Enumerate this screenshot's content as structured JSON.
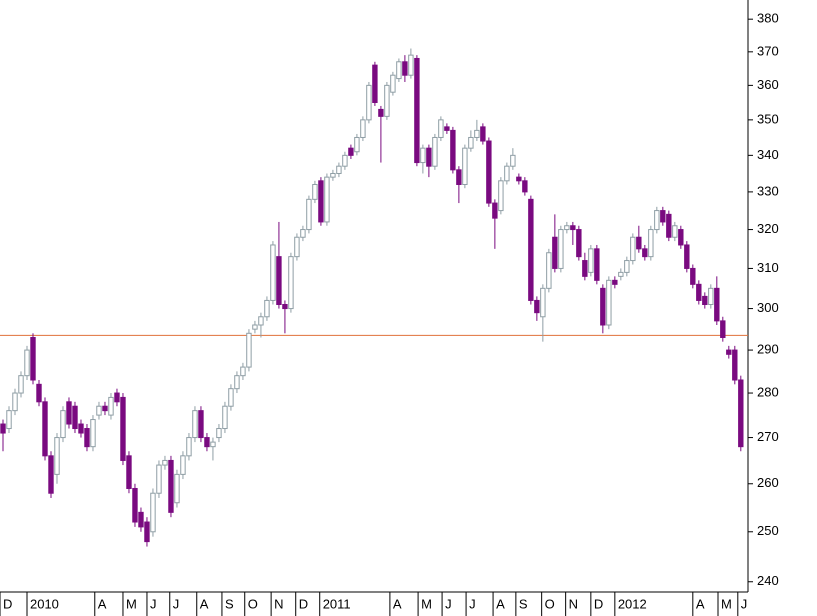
{
  "chart_data": {
    "type": "candlestick",
    "scale": "log",
    "ylim": [
      238,
      386
    ],
    "yticks": [
      240,
      250,
      260,
      270,
      280,
      290,
      300,
      310,
      320,
      330,
      340,
      350,
      360,
      370,
      380
    ],
    "xlim": [
      -0.5,
      124.2
    ],
    "xticks": [
      {
        "value": -0.5,
        "label": "D"
      },
      {
        "value": 4,
        "label": "2010"
      },
      {
        "value": 15.3,
        "label": "A"
      },
      {
        "value": 20,
        "label": "M"
      },
      {
        "value": 24,
        "label": "J"
      },
      {
        "value": 27.8,
        "label": "J"
      },
      {
        "value": 32.3,
        "label": "A"
      },
      {
        "value": 36.5,
        "label": "S"
      },
      {
        "value": 40.3,
        "label": "O"
      },
      {
        "value": 44.7,
        "label": "N"
      },
      {
        "value": 48.8,
        "label": "D"
      },
      {
        "value": 52.8,
        "label": "2011"
      },
      {
        "value": 64.5,
        "label": "A"
      },
      {
        "value": 69.2,
        "label": "M"
      },
      {
        "value": 73.2,
        "label": "J"
      },
      {
        "value": 77.2,
        "label": "J"
      },
      {
        "value": 81.7,
        "label": "A"
      },
      {
        "value": 85.5,
        "label": "S"
      },
      {
        "value": 89.8,
        "label": "O"
      },
      {
        "value": 93.8,
        "label": "N"
      },
      {
        "value": 98,
        "label": "D"
      },
      {
        "value": 102,
        "label": "2012"
      },
      {
        "value": 115,
        "label": "A"
      },
      {
        "value": 119.2,
        "label": "M"
      },
      {
        "value": 122.5,
        "label": "J"
      }
    ],
    "up_color": "#8f9ea5",
    "down_color": "#7a0a80",
    "hline": {
      "value": 293.5,
      "color": "#e0703a"
    },
    "candles": [
      [
        273,
        274,
        267,
        271
      ],
      [
        272,
        277,
        271,
        276
      ],
      [
        276,
        281,
        275,
        280
      ],
      [
        280,
        285,
        279,
        284
      ],
      [
        284,
        291,
        283,
        290
      ],
      [
        293,
        294,
        282,
        283
      ],
      [
        282,
        283,
        277,
        278
      ],
      [
        278,
        279,
        265,
        266
      ],
      [
        266,
        267,
        257,
        258
      ],
      [
        262,
        271,
        260,
        270
      ],
      [
        270,
        277,
        269,
        276
      ],
      [
        278,
        279,
        272,
        273
      ],
      [
        277,
        278,
        271,
        272
      ],
      [
        273,
        274,
        270,
        271
      ],
      [
        272,
        273,
        267,
        268
      ],
      [
        268,
        275,
        267,
        274
      ],
      [
        275,
        278,
        274,
        277
      ],
      [
        277,
        278,
        275,
        276
      ],
      [
        275,
        280,
        274,
        279
      ],
      [
        280,
        281,
        277,
        278
      ],
      [
        279,
        280,
        264,
        265
      ],
      [
        266,
        267,
        258,
        259
      ],
      [
        259,
        260,
        251,
        252
      ],
      [
        254,
        255,
        250,
        251
      ],
      [
        252,
        253,
        247,
        248
      ],
      [
        250,
        259,
        249,
        258
      ],
      [
        258,
        265,
        257,
        264
      ],
      [
        264,
        266,
        263,
        265
      ],
      [
        265,
        266,
        253,
        254
      ],
      [
        256,
        263,
        255,
        262
      ],
      [
        262,
        267,
        261,
        266
      ],
      [
        266,
        271,
        265,
        270
      ],
      [
        270,
        277,
        269,
        276
      ],
      [
        276,
        277,
        269,
        270
      ],
      [
        270,
        271,
        267,
        268
      ],
      [
        268,
        270,
        265,
        269
      ],
      [
        270,
        273,
        269,
        272
      ],
      [
        272,
        278,
        271,
        277
      ],
      [
        277,
        282,
        276,
        281
      ],
      [
        281,
        285,
        280,
        284
      ],
      [
        284,
        287,
        283,
        286
      ],
      [
        286,
        295,
        285,
        294
      ],
      [
        295,
        297,
        294,
        296
      ],
      [
        296,
        299,
        293,
        298
      ],
      [
        298,
        303,
        297,
        302
      ],
      [
        302,
        317,
        301,
        316
      ],
      [
        313,
        322,
        300,
        301
      ],
      [
        301,
        302,
        294,
        300
      ],
      [
        300,
        314,
        299,
        313
      ],
      [
        313,
        319,
        312,
        318
      ],
      [
        318,
        321,
        317,
        320
      ],
      [
        320,
        329,
        319,
        328
      ],
      [
        328,
        333,
        327,
        332
      ],
      [
        333,
        334,
        321,
        322
      ],
      [
        322,
        335,
        321,
        334
      ],
      [
        334,
        336,
        333,
        335
      ],
      [
        335,
        338,
        334,
        337
      ],
      [
        337,
        341,
        336,
        340
      ],
      [
        342,
        343,
        339,
        340
      ],
      [
        341,
        346,
        340,
        345
      ],
      [
        345,
        351,
        344,
        350
      ],
      [
        350,
        361,
        349,
        360
      ],
      [
        366,
        367,
        354,
        355
      ],
      [
        353,
        354,
        338,
        351
      ],
      [
        351,
        361,
        350,
        360
      ],
      [
        358,
        364,
        357,
        363
      ],
      [
        362,
        368,
        361,
        367
      ],
      [
        367,
        369,
        361,
        363
      ],
      [
        363,
        371,
        362,
        369
      ],
      [
        368,
        369,
        337,
        338
      ],
      [
        338,
        343,
        335,
        342
      ],
      [
        342,
        343,
        334,
        337
      ],
      [
        337,
        346,
        336,
        345
      ],
      [
        345,
        351,
        344,
        350
      ],
      [
        348,
        349,
        346,
        347
      ],
      [
        347,
        348,
        335,
        336
      ],
      [
        336,
        337,
        327,
        332
      ],
      [
        332,
        343,
        331,
        342
      ],
      [
        342,
        347,
        341,
        345
      ],
      [
        345,
        350,
        344,
        347
      ],
      [
        348,
        349,
        343,
        344
      ],
      [
        344,
        345,
        326,
        327
      ],
      [
        327,
        328,
        315,
        323
      ],
      [
        325,
        334,
        324,
        333
      ],
      [
        333,
        338,
        332,
        337
      ],
      [
        337,
        342,
        336,
        340
      ],
      [
        334,
        335,
        332,
        333
      ],
      [
        333,
        334,
        329,
        330
      ],
      [
        328,
        329,
        301,
        302
      ],
      [
        302,
        303,
        297,
        299
      ],
      [
        298,
        306,
        292,
        305
      ],
      [
        305,
        315,
        304,
        314
      ],
      [
        318,
        324,
        309,
        310
      ],
      [
        310,
        321,
        309,
        320
      ],
      [
        320,
        322,
        319,
        321
      ],
      [
        321,
        322,
        316,
        320
      ],
      [
        320,
        321,
        312,
        313
      ],
      [
        312,
        314,
        307,
        308
      ],
      [
        309,
        316,
        308,
        315
      ],
      [
        315,
        316,
        306,
        307
      ],
      [
        305,
        306,
        294,
        296
      ],
      [
        296,
        308,
        295,
        307
      ],
      [
        307,
        308,
        305,
        306
      ],
      [
        308,
        310,
        307,
        309
      ],
      [
        309,
        313,
        308,
        312
      ],
      [
        312,
        319,
        311,
        318
      ],
      [
        318,
        321,
        314,
        315
      ],
      [
        315,
        316,
        312,
        313
      ],
      [
        313,
        321,
        312,
        320
      ],
      [
        320,
        326,
        319,
        325
      ],
      [
        325,
        326,
        321,
        322
      ],
      [
        324,
        325,
        317,
        318
      ],
      [
        318,
        322,
        317,
        321
      ],
      [
        320,
        321,
        315,
        316
      ],
      [
        316,
        317,
        309,
        310
      ],
      [
        310,
        311,
        305,
        306
      ],
      [
        306,
        307,
        301,
        302
      ],
      [
        303,
        304,
        300,
        301
      ],
      [
        301,
        306,
        300,
        305
      ],
      [
        305,
        308,
        296,
        297
      ],
      [
        297,
        298,
        292,
        293
      ],
      [
        290,
        291,
        288,
        289
      ],
      [
        290,
        291,
        282,
        283
      ],
      [
        283,
        284,
        267,
        268
      ]
    ]
  }
}
